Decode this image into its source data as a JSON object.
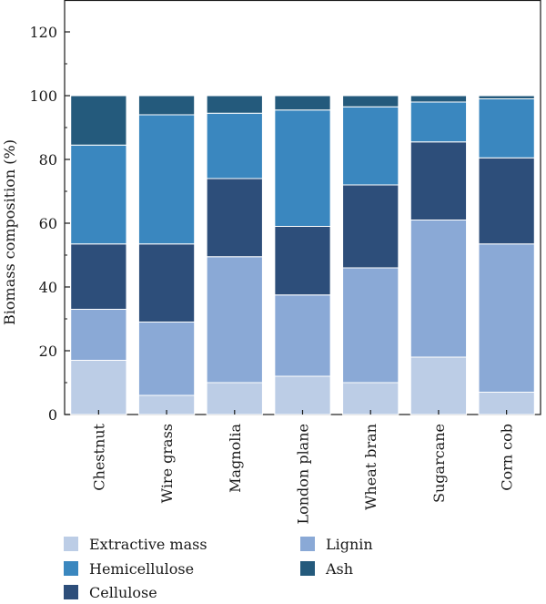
{
  "chart_data": {
    "type": "bar",
    "stacked": true,
    "ylabel": "Biomass composition (%)",
    "xlabel": "",
    "ylim": [
      0,
      130
    ],
    "yticks": [
      0,
      20,
      40,
      60,
      80,
      100,
      120
    ],
    "grid": false,
    "legend_position": "bottom",
    "categories": [
      "Chestnut",
      "Wire grass",
      "Magnolia",
      "London plane",
      "Wheat bran",
      "Sugarcane",
      "Corn cob"
    ],
    "series": [
      {
        "name": "Extractive mass",
        "color": "#bccde6",
        "values": [
          17,
          6,
          10,
          12,
          10,
          18,
          7
        ]
      },
      {
        "name": "Lignin",
        "color": "#8aa9d6",
        "values": [
          16,
          23,
          39.5,
          25.5,
          36,
          43,
          46.5
        ]
      },
      {
        "name": "Cellulose",
        "color": "#2d4e7a",
        "values": [
          20.5,
          24.5,
          24.5,
          21.5,
          26,
          24.5,
          27
        ]
      },
      {
        "name": "Hemicellulose",
        "color": "#3a87bf",
        "values": [
          31,
          40.5,
          20.5,
          36.5,
          24.5,
          12.5,
          18.5
        ]
      },
      {
        "name": "Ash",
        "color": "#245a7c",
        "values": [
          15.5,
          6,
          5.5,
          4.5,
          3.5,
          2,
          1
        ]
      }
    ]
  }
}
